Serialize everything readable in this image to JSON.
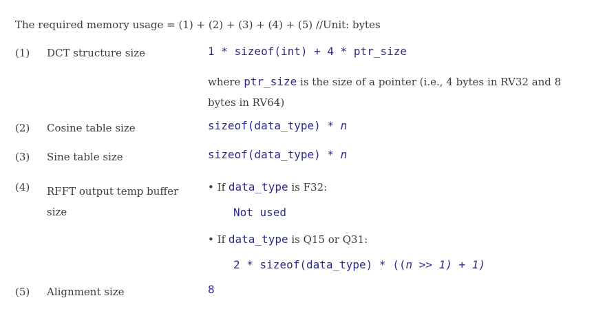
{
  "heading": "The required memory usage = (1) + (2) + (3) + (4) + (5)    //Unit: bytes",
  "rows": [
    {
      "num": "(1)",
      "label": "DCT structure size"
    },
    {
      "num": "(2)",
      "label": "Cosine table size"
    },
    {
      "num": "(3)",
      "label": "Sine table size"
    },
    {
      "num": "(4)",
      "label": "RFFT output temp buffer size"
    },
    {
      "num": "(5)",
      "label": "Alignment size"
    }
  ],
  "dct": {
    "formula": "1 * sizeof(int) + 4 * ptr_size",
    "note_pre": "where ",
    "note_code": "ptr_size",
    "note_post": " is the size of a pointer (i.e., 4 bytes in RV32 and 8 bytes in RV64)"
  },
  "cos": {
    "code": "sizeof(data_type) * ",
    "var": "n"
  },
  "sin": {
    "code": "sizeof(data_type) * ",
    "var": "n"
  },
  "rfft": {
    "if1_bullet": "•",
    "if1_pre": "If ",
    "if1_code": "data_type",
    "if1_post": " is F32:",
    "not_used": "Not used",
    "if2_bullet": "•",
    "if2_pre": "If ",
    "if2_code": "data_type",
    "if2_post": " is Q15 or Q31:",
    "formula_a": "2 * sizeof(data_type) * ((",
    "formula_n": "n",
    "formula_b": " >> 1) + 1)"
  },
  "align": {
    "value": "8"
  }
}
